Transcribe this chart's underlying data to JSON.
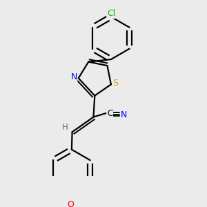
{
  "background_color": "#ebebeb",
  "line_color": "#000000",
  "line_width": 1.6,
  "atom_colors": {
    "Cl": "#00bb00",
    "N": "#0000ff",
    "S": "#ccaa00",
    "O": "#ff0000",
    "C": "#000000",
    "H": "#408080"
  },
  "font_size": 8.5,
  "figsize": [
    3.0,
    3.0
  ],
  "dpi": 100
}
